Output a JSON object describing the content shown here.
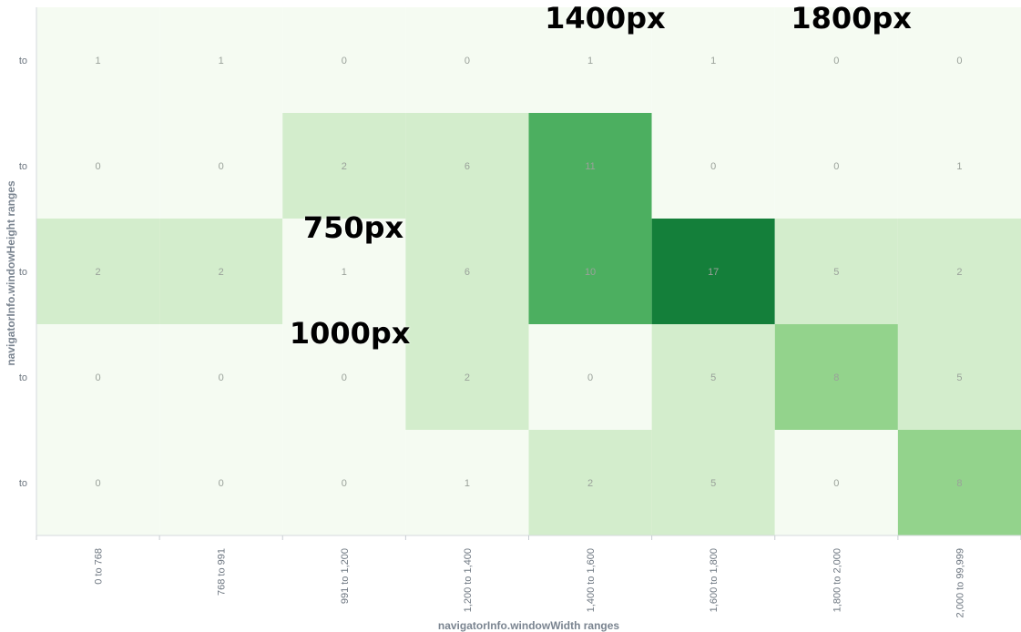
{
  "chart_data": {
    "type": "heatmap",
    "xlabel": "navigatorInfo.windowWidth ranges",
    "ylabel": "navigatorInfo.windowHeight ranges",
    "x_categories": [
      "0 to 768",
      "768 to 991",
      "991 to 1,200",
      "1,200 to 1,400",
      "1,400 to 1,600",
      "1,600 to 1,800",
      "1,800 to 2,000",
      "2,000 to 99,999"
    ],
    "y_categories": [
      "to",
      "to",
      "to",
      "to",
      "to"
    ],
    "values": [
      [
        1,
        1,
        0,
        0,
        1,
        1,
        0,
        0
      ],
      [
        0,
        0,
        2,
        6,
        11,
        0,
        0,
        1
      ],
      [
        2,
        2,
        1,
        6,
        10,
        17,
        5,
        2
      ],
      [
        0,
        0,
        0,
        2,
        0,
        5,
        8,
        5
      ],
      [
        0,
        0,
        0,
        1,
        2,
        5,
        0,
        8
      ]
    ],
    "color_scale": [
      "#f5fbf2",
      "#d3edcc",
      "#93d38c",
      "#4caf60",
      "#147f3a"
    ],
    "grid": false,
    "annotations": [
      {
        "text": "1400px",
        "col": 4,
        "row": 0,
        "anchor": "top"
      },
      {
        "text": "1800px",
        "col": 6,
        "row": 0,
        "anchor": "top"
      },
      {
        "text": "750px",
        "col": 2,
        "row": 2,
        "anchor": "top"
      },
      {
        "text": "1000px",
        "col": 2,
        "row": 3,
        "anchor": "top"
      }
    ]
  }
}
